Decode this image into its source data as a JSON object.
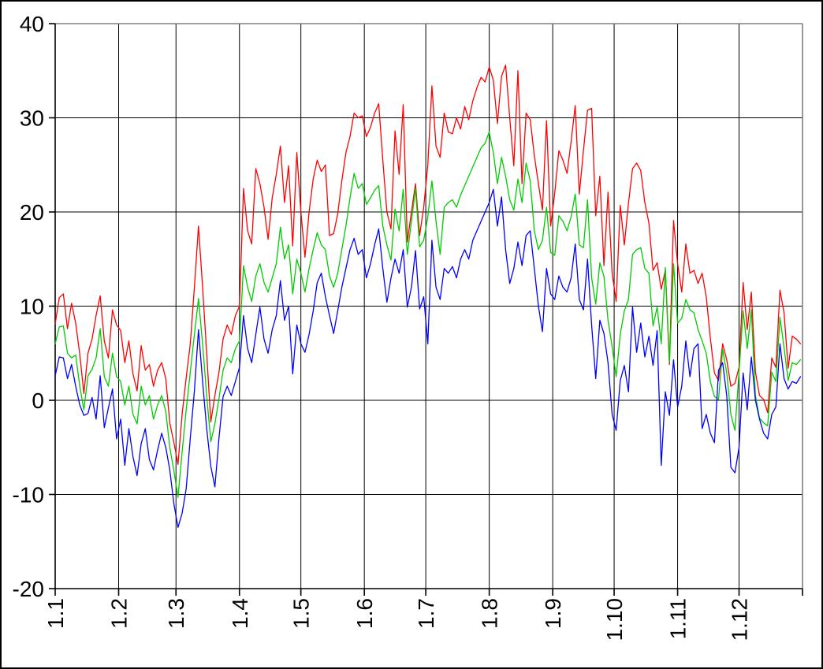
{
  "chart_data": {
    "type": "line",
    "title": "",
    "xlabel": "",
    "ylabel": "",
    "grid": true,
    "legend": "none",
    "x_axis": {
      "tick_labels": [
        "1.1",
        "1.2",
        "1.3",
        "1.4",
        "1.5",
        "1.6",
        "1.7",
        "1.8",
        "1.9",
        "1.10",
        "1.11",
        "1.12"
      ],
      "tick_days": [
        1,
        32,
        60,
        91,
        121,
        152,
        182,
        213,
        244,
        274,
        305,
        335
      ],
      "domain_days": [
        1,
        366
      ],
      "label_rotation_deg": -90
    },
    "y_axis": {
      "ticks": [
        40,
        30,
        20,
        10,
        0,
        -10,
        -20
      ],
      "range": [
        -20,
        40
      ]
    },
    "frame_colors": {
      "gridline": "#000000",
      "axis": "#000000",
      "plot_border_top_right": "#808080",
      "background": "#ffffff",
      "outer_border": "#000000",
      "text": "#000000"
    },
    "series": [
      {
        "name": "red",
        "color": "#ff0000",
        "start_day": 1,
        "x_step_days": 2,
        "values": [
          8.1,
          10.9,
          11.3,
          7.6,
          10.3,
          8.2,
          4.9,
          0.7,
          5.0,
          6.5,
          9.0,
          11.1,
          6.3,
          4.5,
          9.6,
          8.0,
          7.4,
          4.0,
          6.3,
          2.8,
          1.0,
          5.8,
          3.2,
          3.8,
          1.5,
          3.2,
          4.0,
          2.3,
          -2.4,
          -4.5,
          -6.8,
          -1.5,
          2.4,
          6.0,
          12.0,
          18.5,
          12.0,
          5.0,
          -2.3,
          0.5,
          3.0,
          6.5,
          8.0,
          7.0,
          9.0,
          10.0,
          22.5,
          18.0,
          16.6,
          24.6,
          23.0,
          20.5,
          17.1,
          21.5,
          24.0,
          27.0,
          21.0,
          24.9,
          16.4,
          26.3,
          20.0,
          15.2,
          20.0,
          23.5,
          25.5,
          24.3,
          25.0,
          17.5,
          17.7,
          19.8,
          23.3,
          26.3,
          28.0,
          30.5,
          30.0,
          30.2,
          28.0,
          29.0,
          30.5,
          31.5,
          25.5,
          20.0,
          18.2,
          28.6,
          24.0,
          31.4,
          16.8,
          20.0,
          23.0,
          17.5,
          20.5,
          25.0,
          33.4,
          27.0,
          25.8,
          30.5,
          28.5,
          28.3,
          30.0,
          28.8,
          31.2,
          29.8,
          31.8,
          33.2,
          34.3,
          33.8,
          35.4,
          34.0,
          29.4,
          34.4,
          35.6,
          30.0,
          24.9,
          35.0,
          23.0,
          30.5,
          29.8,
          26.0,
          23.0,
          20.2,
          29.7,
          18.5,
          22.0,
          26.5,
          25.5,
          24.1,
          27.5,
          31.3,
          21.9,
          26.5,
          30.8,
          31.0,
          19.6,
          23.8,
          14.3,
          22.1,
          13.5,
          10.5,
          20.7,
          16.5,
          20.9,
          24.6,
          25.2,
          24.4,
          21.0,
          18.8,
          13.8,
          14.6,
          11.8,
          13.8,
          3.8,
          19.1,
          14.5,
          11.5,
          16.6,
          13.5,
          13.8,
          12.4,
          13.5,
          11.0,
          6.6,
          2.9,
          2.1,
          6.0,
          4.3,
          1.5,
          1.8,
          3.5,
          12.5,
          7.5,
          11.5,
          3.0,
          0.5,
          0.1,
          -1.3,
          4.5,
          3.5,
          11.7,
          9.3,
          3.4,
          6.8,
          6.5,
          6.0
        ]
      },
      {
        "name": "green",
        "color": "#00cc00",
        "start_day": 1,
        "x_step_days": 2,
        "values": [
          6.0,
          7.8,
          7.9,
          5.0,
          4.5,
          4.8,
          1.5,
          -1.0,
          2.6,
          3.3,
          4.5,
          7.6,
          2.5,
          1.5,
          5.0,
          2.5,
          2.0,
          -0.5,
          1.5,
          -1.5,
          -2.5,
          1.5,
          -0.5,
          0.5,
          -2.0,
          -0.5,
          0.5,
          -1.2,
          -5.0,
          -7.5,
          -10.3,
          -5.5,
          -1.0,
          3.0,
          7.0,
          10.8,
          6.0,
          0.5,
          -4.4,
          -2.5,
          0.2,
          3.2,
          4.5,
          4.0,
          5.5,
          6.3,
          14.3,
          12.0,
          10.5,
          13.2,
          14.5,
          12.5,
          11.5,
          13.0,
          14.5,
          18.4,
          15.0,
          16.5,
          11.3,
          15.0,
          13.5,
          11.5,
          14.0,
          16.0,
          17.8,
          16.5,
          16.0,
          13.2,
          12.0,
          13.5,
          16.0,
          18.5,
          21.5,
          24.1,
          22.5,
          23.0,
          20.8,
          21.5,
          22.3,
          22.8,
          18.5,
          16.5,
          14.9,
          20.3,
          18.0,
          22.4,
          15.5,
          19.0,
          22.5,
          16.3,
          17.0,
          19.5,
          23.3,
          19.0,
          15.5,
          20.5,
          21.0,
          21.3,
          20.5,
          21.8,
          22.8,
          23.8,
          24.8,
          25.8,
          26.8,
          27.3,
          28.5,
          26.3,
          23.0,
          25.8,
          23.8,
          21.3,
          20.2,
          23.5,
          21.0,
          25.2,
          23.3,
          18.0,
          16.0,
          17.0,
          20.5,
          15.7,
          15.4,
          19.6,
          19.0,
          18.0,
          19.5,
          21.9,
          16.5,
          16.2,
          21.3,
          13.0,
          10.2,
          14.6,
          13.2,
          8.5,
          5.7,
          2.5,
          7.0,
          9.5,
          10.7,
          15.5,
          16.0,
          16.2,
          14.0,
          13.5,
          7.9,
          9.9,
          6.0,
          14.1,
          4.0,
          14.5,
          8.2,
          8.7,
          10.7,
          9.6,
          9.3,
          7.5,
          6.3,
          5.0,
          2.0,
          0.4,
          0.1,
          5.4,
          2.9,
          -1.5,
          -3.2,
          3.0,
          9.5,
          5.5,
          9.6,
          0.5,
          -1.9,
          -2.4,
          -2.7,
          3.0,
          2.0,
          8.8,
          5.6,
          2.1,
          4.0,
          3.8,
          4.3
        ]
      },
      {
        "name": "blue",
        "color": "#0000ff",
        "start_day": 1,
        "x_step_days": 2,
        "values": [
          2.6,
          4.6,
          4.5,
          2.3,
          3.8,
          1.5,
          -0.5,
          -1.6,
          -1.4,
          0.3,
          -2.0,
          2.6,
          -2.9,
          -0.8,
          1.2,
          -4.1,
          -2.0,
          -6.9,
          -3.0,
          -6.0,
          -8.0,
          -4.6,
          -3.0,
          -6.3,
          -7.4,
          -5.3,
          -3.5,
          -5.0,
          -7.4,
          -11.0,
          -13.5,
          -12.0,
          -9.4,
          -4.0,
          1.0,
          7.5,
          2.0,
          -3.0,
          -7.0,
          -9.2,
          -4.0,
          0.4,
          1.5,
          0.5,
          2.0,
          3.5,
          9.0,
          5.5,
          4.0,
          7.0,
          9.9,
          6.5,
          5.0,
          7.5,
          9.0,
          12.7,
          8.5,
          10.0,
          2.8,
          8.0,
          6.0,
          5.1,
          7.0,
          9.5,
          12.5,
          13.5,
          11.0,
          9.0,
          7.1,
          9.5,
          12.0,
          14.0,
          16.0,
          17.2,
          15.5,
          16.0,
          13.0,
          14.5,
          16.5,
          18.2,
          14.0,
          10.4,
          13.0,
          15.0,
          13.5,
          16.0,
          9.9,
          12.0,
          15.9,
          9.7,
          11.0,
          6.0,
          17.0,
          12.0,
          10.7,
          14.0,
          13.5,
          14.2,
          13.0,
          15.0,
          16.0,
          15.0,
          17.0,
          18.0,
          19.0,
          20.0,
          21.0,
          22.4,
          18.5,
          21.6,
          16.0,
          12.4,
          14.0,
          16.8,
          14.3,
          17.5,
          18.0,
          14.0,
          10.0,
          7.3,
          14.0,
          11.3,
          10.7,
          13.2,
          12.0,
          11.5,
          13.0,
          16.6,
          10.7,
          9.6,
          15.0,
          8.0,
          2.3,
          8.5,
          7.1,
          4.0,
          -1.5,
          -3.2,
          2.1,
          3.7,
          0.9,
          9.9,
          5.1,
          8.2,
          4.6,
          6.8,
          3.7,
          7.4,
          -6.9,
          0.9,
          -1.6,
          4.3,
          -0.7,
          1.5,
          6.3,
          2.5,
          5.5,
          6.0,
          -3.0,
          -1.5,
          -3.5,
          -4.5,
          3.2,
          4.0,
          0.5,
          -7.1,
          -7.7,
          -5.0,
          2.9,
          -1.0,
          4.6,
          0.0,
          -2.0,
          -3.5,
          -4.1,
          -1.5,
          -0.7,
          6.0,
          2.3,
          1.2,
          2.0,
          1.8,
          2.5
        ]
      }
    ]
  }
}
